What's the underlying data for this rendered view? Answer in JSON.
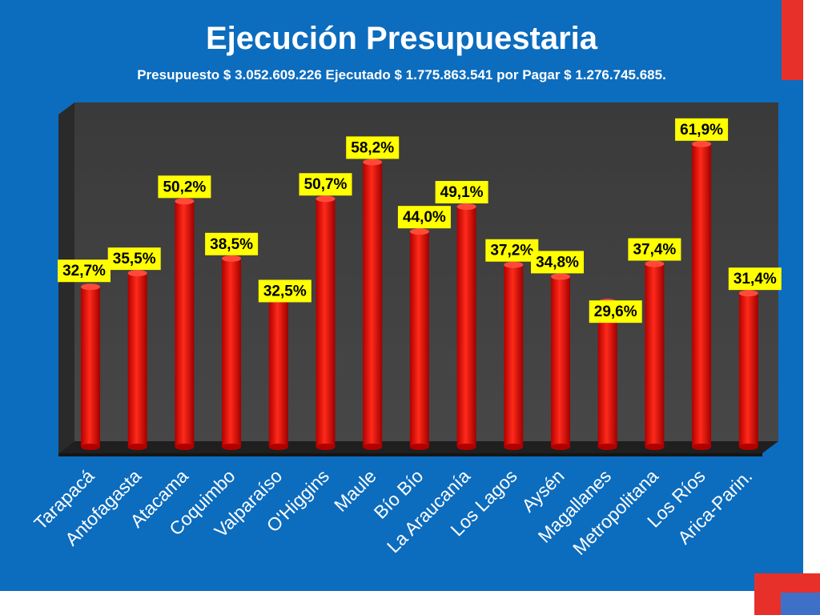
{
  "slide": {
    "title": "Ejecución Presupuestaria",
    "subtitle": "Presupuesto $ 3.052.609.226 Ejecutado $ 1.775.863.541 por Pagar $ 1.276.745.685."
  },
  "colors": {
    "slide_background": "#0c6cbe",
    "plot_background": "#3c3c3c",
    "bar": "#ff0000",
    "label_background": "#ffff00",
    "accent": "#e8302a"
  },
  "chart_data": {
    "type": "bar",
    "title": "",
    "xlabel": "",
    "ylabel": "",
    "ylim": [
      0,
      70
    ],
    "grid": false,
    "legend": "none",
    "value_suffix": "%",
    "categories": [
      "Tarapacá",
      "Antofagasta",
      "Atacama",
      "Coquimbo",
      "Valparaíso",
      "O'Higgins",
      "Maule",
      "Bío Bío",
      "La Araucanía",
      "Los Lagos",
      "Aysén",
      "Magallanes",
      "Metropolitana",
      "Los Ríos",
      "Arica-Parin."
    ],
    "values": [
      32.7,
      35.5,
      50.2,
      38.5,
      32.5,
      50.7,
      58.2,
      44.0,
      49.1,
      37.2,
      34.8,
      29.6,
      37.4,
      61.9,
      31.4
    ],
    "data_labels": [
      "32,7%",
      "35,5%",
      "50,2%",
      "38,5%",
      "32,5%",
      "50,7%",
      "58,2%",
      "44,0%",
      "49,1%",
      "37,2%",
      "34,8%",
      "29,6%",
      "37,4%",
      "61,9%",
      "31,4%"
    ]
  }
}
